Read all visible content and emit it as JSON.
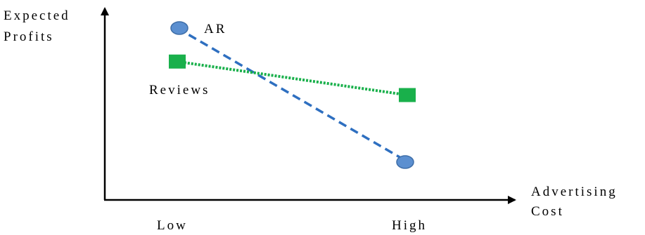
{
  "chart_data": {
    "type": "line",
    "title": "",
    "ylabel": [
      "Expected",
      "Profits"
    ],
    "xlabel": [
      "Advertising",
      "Cost"
    ],
    "categories": [
      "Low",
      "High"
    ],
    "series": [
      {
        "name": "AR",
        "values": [
          1.0,
          0.0
        ],
        "color": "#5b8fd0",
        "marker": "circle",
        "line": "dashed"
      },
      {
        "name": "Reviews",
        "values": [
          0.75,
          0.5
        ],
        "color": "#19b04b",
        "marker": "square",
        "line": "dotted"
      }
    ],
    "ylim": [
      -0.7,
      1.6
    ],
    "grid": false
  }
}
